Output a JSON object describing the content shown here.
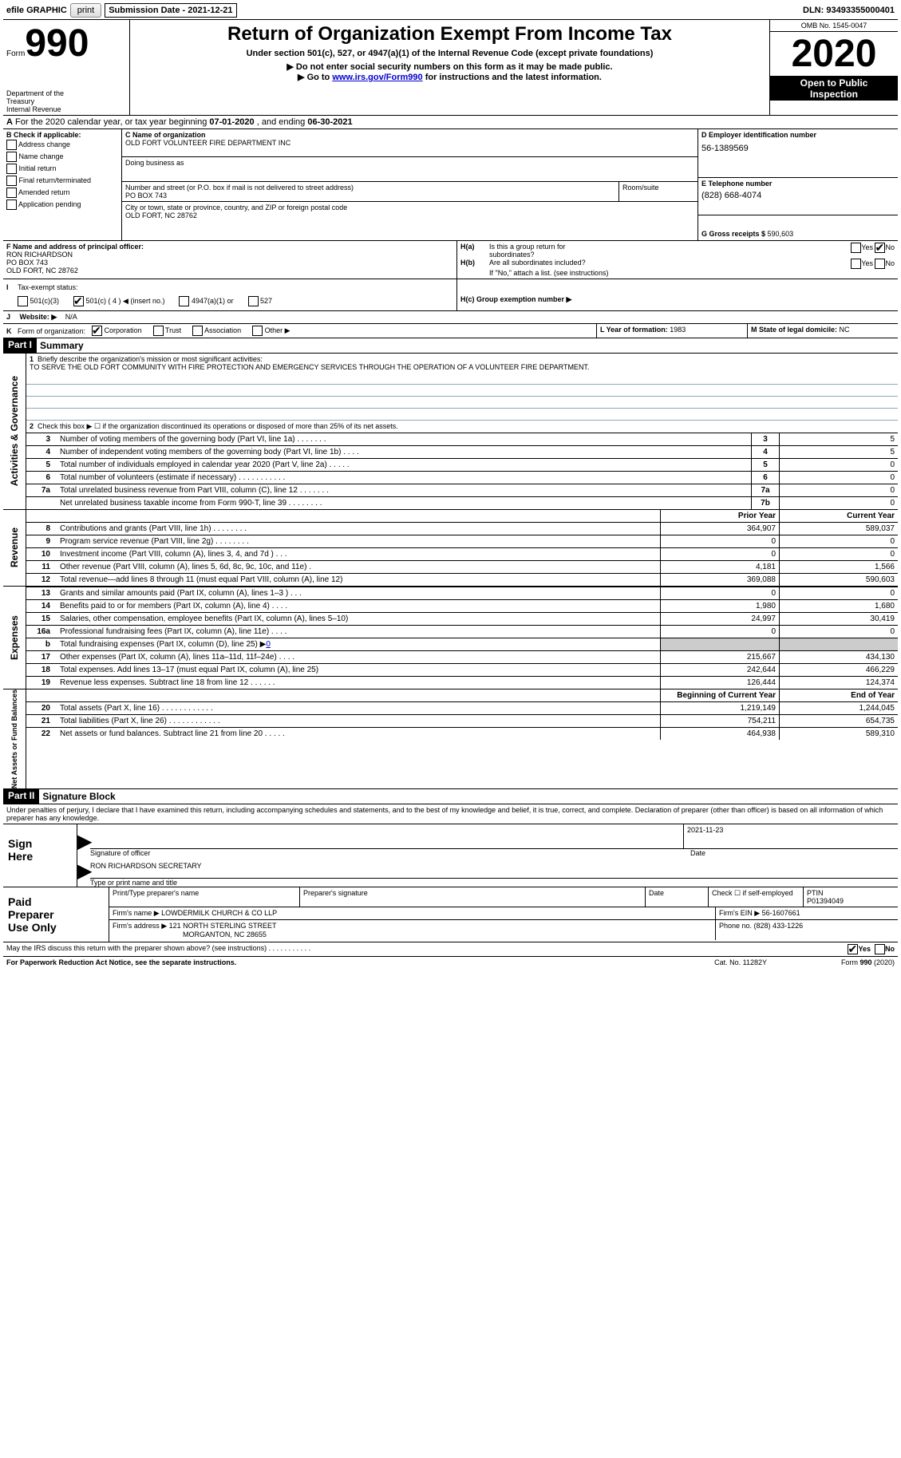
{
  "topbar": {
    "efile_label": "efile GRAPHIC",
    "print_btn": "print",
    "submission_label": "Submission Date - ",
    "submission_date": "2021-12-21",
    "dln_label": "DLN: ",
    "dln": "93493355000401"
  },
  "header": {
    "form_word": "Form",
    "form_no": "990",
    "dept1": "Department of the",
    "dept2": "Treasury",
    "dept3": "Internal Revenue",
    "title": "Return of Organization Exempt From Income Tax",
    "subtitle": "Under section 501(c), 527, or 4947(a)(1) of the Internal Revenue Code (except private foundations)",
    "warn1": "▶ Do not enter social security numbers on this form as it may be made public.",
    "warn2a": "▶ Go to ",
    "warn2_link": "www.irs.gov/Form990",
    "warn2b": " for instructions and the latest information.",
    "omb_label": "OMB No. 1545-0047",
    "year": "2020",
    "open1": "Open to Public",
    "open2": "Inspection"
  },
  "lineA": {
    "text_a": "A",
    "text_rest": " For the 2020 calendar year, or tax year beginning ",
    "begin": "07-01-2020",
    "mid": " , and ending ",
    "end": "06-30-2021"
  },
  "boxB": {
    "title": "B Check if applicable:",
    "items": [
      "Address change",
      "Name change",
      "Initial return",
      "Final return/terminated",
      "Amended return",
      "Application pending"
    ],
    "checked": [
      false,
      false,
      false,
      false,
      false,
      false
    ]
  },
  "boxC": {
    "cname_label": "C Name of organization",
    "cname": "OLD FORT VOLUNTEER FIRE DEPARTMENT INC",
    "dba_label": "Doing business as",
    "street_label": "Number and street (or P.O. box if mail is not delivered to street address)",
    "room_label": "Room/suite",
    "street": "PO BOX 743",
    "city_label": "City or town, state or province, country, and ZIP or foreign postal code",
    "city": "OLD FORT, NC  28762"
  },
  "boxD": {
    "label": "D Employer identification number",
    "value": "56-1389569"
  },
  "boxE": {
    "label": "E Telephone number",
    "value": "(828) 668-4074"
  },
  "boxG": {
    "label": "G Gross receipts $ ",
    "value": "590,603"
  },
  "boxF": {
    "label": "F  Name and address of principal officer:",
    "name": "RON RICHARDSON",
    "addr1": "PO BOX 743",
    "addr2": "OLD FORT, NC  28762"
  },
  "boxH": {
    "a_q": "H(a)  Is this a group return for subordinates?",
    "b_q": "H(b)  Are all subordinates included?",
    "yes": "Yes",
    "no": "No",
    "a_no_checked": true,
    "note": "If \"No,\" attach a list. (see instructions)",
    "c_label": "H(c)  Group exemption number ▶"
  },
  "lineI": {
    "label": "I",
    "text": "Tax-exempt status:",
    "opts": [
      "501(c)(3)",
      "501(c) ( 4 ) ◀ (insert no.)",
      "4947(a)(1) or",
      "527"
    ],
    "checked": [
      false,
      true,
      false,
      false
    ]
  },
  "lineJ": {
    "label": "J",
    "text": "Website: ▶",
    "value": "N/A"
  },
  "lineK": {
    "label": "K",
    "text": "Form of organization:",
    "opts": [
      "Corporation",
      "Trust",
      "Association",
      "Other ▶"
    ],
    "checked": [
      true,
      false,
      false,
      false
    ]
  },
  "lineLM": {
    "L": "L Year of formation: ",
    "Lval": "1983",
    "M": "M State of legal domicile: ",
    "Mval": "NC"
  },
  "partI": {
    "tag": "Part I",
    "title": "Summary"
  },
  "mission": {
    "q": "1  Briefly describe the organization's mission or most significant activities:",
    "text": "TO SERVE THE OLD FORT COMMUNITY WITH FIRE PROTECTION AND EMERGENCY SERVICES THROUGH THE OPERATION OF A VOLUNTEER FIRE DEPARTMENT."
  },
  "line2": "Check this box ▶ ☐  if the organization discontinued its operations or disposed of more than 25% of its net assets.",
  "sideLabels": {
    "gov": "Activities & Governance",
    "rev": "Revenue",
    "exp": "Expenses",
    "net": "Net Assets or\nFund Balances"
  },
  "govLines": [
    {
      "n": "3",
      "t": "Number of voting members of the governing body (Part VI, line 1a)   .    .    .    .    .    .    .",
      "b": "3",
      "v": "5"
    },
    {
      "n": "4",
      "t": "Number of independent voting members of the governing body (Part VI, line 1b)   .    .    .    .",
      "b": "4",
      "v": "5"
    },
    {
      "n": "5",
      "t": "Total number of individuals employed in calendar year 2020 (Part V, line 2a)   .    .    .    .    .",
      "b": "5",
      "v": "0"
    },
    {
      "n": "6",
      "t": "Total number of volunteers (estimate if necessary)   .    .    .    .    .    .    .    .    .    .    .",
      "b": "6",
      "v": "0"
    },
    {
      "n": "7a",
      "t": "Total unrelated business revenue from Part VIII, column (C), line 12   .    .    .    .    .    .    .",
      "b": "7a",
      "v": "0"
    },
    {
      "n": "",
      "t": "Net unrelated business taxable income from Form 990-T, line 39   .    .    .    .    .    .    .    .",
      "b": "7b",
      "v": "0"
    }
  ],
  "colHdr": {
    "prior": "Prior Year",
    "current": "Current Year"
  },
  "revLines": [
    {
      "n": "8",
      "t": "Contributions and grants (Part VIII, line 1h)   .    .    .    .    .    .    .    .",
      "p": "364,907",
      "c": "589,037"
    },
    {
      "n": "9",
      "t": "Program service revenue (Part VIII, line 2g)   .    .    .    .    .    .    .    .",
      "p": "0",
      "c": "0"
    },
    {
      "n": "10",
      "t": "Investment income (Part VIII, column (A), lines 3, 4, and 7d )   .    .    .",
      "p": "0",
      "c": "0"
    },
    {
      "n": "11",
      "t": "Other revenue (Part VIII, column (A), lines 5, 6d, 8c, 9c, 10c, and 11e)   .",
      "p": "4,181",
      "c": "1,566"
    },
    {
      "n": "12",
      "t": "Total revenue—add lines 8 through 11 (must equal Part VIII, column (A), line 12)",
      "p": "369,088",
      "c": "590,603"
    }
  ],
  "expLines": [
    {
      "n": "13",
      "t": "Grants and similar amounts paid (Part IX, column (A), lines 1–3 )   .    .    .",
      "p": "0",
      "c": "0"
    },
    {
      "n": "14",
      "t": "Benefits paid to or for members (Part IX, column (A), line 4)   .    .    .    .",
      "p": "1,980",
      "c": "1,680"
    },
    {
      "n": "15",
      "t": "Salaries, other compensation, employee benefits (Part IX, column (A), lines 5–10)",
      "p": "24,997",
      "c": "30,419"
    },
    {
      "n": "16a",
      "t": "Professional fundraising fees (Part IX, column (A), line 11e)   .    .    .    .",
      "p": "0",
      "c": "0"
    },
    {
      "n": "b",
      "t": "Total fundraising expenses (Part IX, column (D), line 25) ▶",
      "link": "0",
      "p": "",
      "c": "",
      "grey": true
    },
    {
      "n": "17",
      "t": "Other expenses (Part IX, column (A), lines 11a–11d, 11f–24e)   .    .    .    .",
      "p": "215,667",
      "c": "434,130"
    },
    {
      "n": "18",
      "t": "Total expenses. Add lines 13–17 (must equal Part IX, column (A), line 25)",
      "p": "242,644",
      "c": "466,229"
    },
    {
      "n": "19",
      "t": "Revenue less expenses. Subtract line 18 from line 12   .    .    .    .    .    .",
      "p": "126,444",
      "c": "124,374"
    }
  ],
  "netHdr": {
    "begin": "Beginning of Current Year",
    "end": "End of Year"
  },
  "netLines": [
    {
      "n": "20",
      "t": "Total assets (Part X, line 16)   .    .    .    .    .    .    .    .    .    .    .    .",
      "p": "1,219,149",
      "c": "1,244,045"
    },
    {
      "n": "21",
      "t": "Total liabilities (Part X, line 26)   .    .    .    .    .    .    .    .    .    .    .    .",
      "p": "754,211",
      "c": "654,735"
    },
    {
      "n": "22",
      "t": "Net assets or fund balances. Subtract line 21 from line 20   .    .    .    .    .",
      "p": "464,938",
      "c": "589,310"
    }
  ],
  "partII": {
    "tag": "Part II",
    "title": "Signature Block"
  },
  "penalties": "Under penalties of perjury, I declare that I have examined this return, including accompanying schedules and statements, and to the best of my knowledge and belief, it is true, correct, and complete. Declaration of preparer (other than officer) is based on all information of which preparer has any knowledge.",
  "sign": {
    "here": "Sign\nHere",
    "sig_label": "Signature of officer",
    "date_label": "Date",
    "date": "2021-11-23",
    "name": "RON RICHARDSON  SECRETARY",
    "type_label": "Type or print name and title"
  },
  "preparer": {
    "here": "Paid\nPreparer\nUse Only",
    "ptname_label": "Print/Type preparer's name",
    "psig_label": "Preparer's signature",
    "pdate_label": "Date",
    "check_label": "Check ☐ if self-employed",
    "ptin_label": "PTIN",
    "ptin": "P01394049",
    "firm_name_label": "Firm's name    ▶ ",
    "firm_name": "LOWDERMILK CHURCH & CO LLP",
    "firm_ein_label": "Firm's EIN ▶ ",
    "firm_ein": "56-1607661",
    "firm_addr_label": "Firm's address ▶ ",
    "firm_addr1": "121 NORTH STERLING STREET",
    "firm_addr2": "MORGANTON, NC  28655",
    "phone_label": "Phone no. ",
    "phone": "(828) 433-1226"
  },
  "discuss": {
    "q": "May the IRS discuss this return with the preparer shown above? (see instructions)   .    .    .    .    .    .    .    .    .    .    .",
    "yes": "Yes",
    "no": "No",
    "yes_checked": true
  },
  "footer": {
    "left": "For Paperwork Reduction Act Notice, see the separate instructions.",
    "mid": "Cat. No. 11282Y",
    "right": "Form 990 (2020)"
  }
}
